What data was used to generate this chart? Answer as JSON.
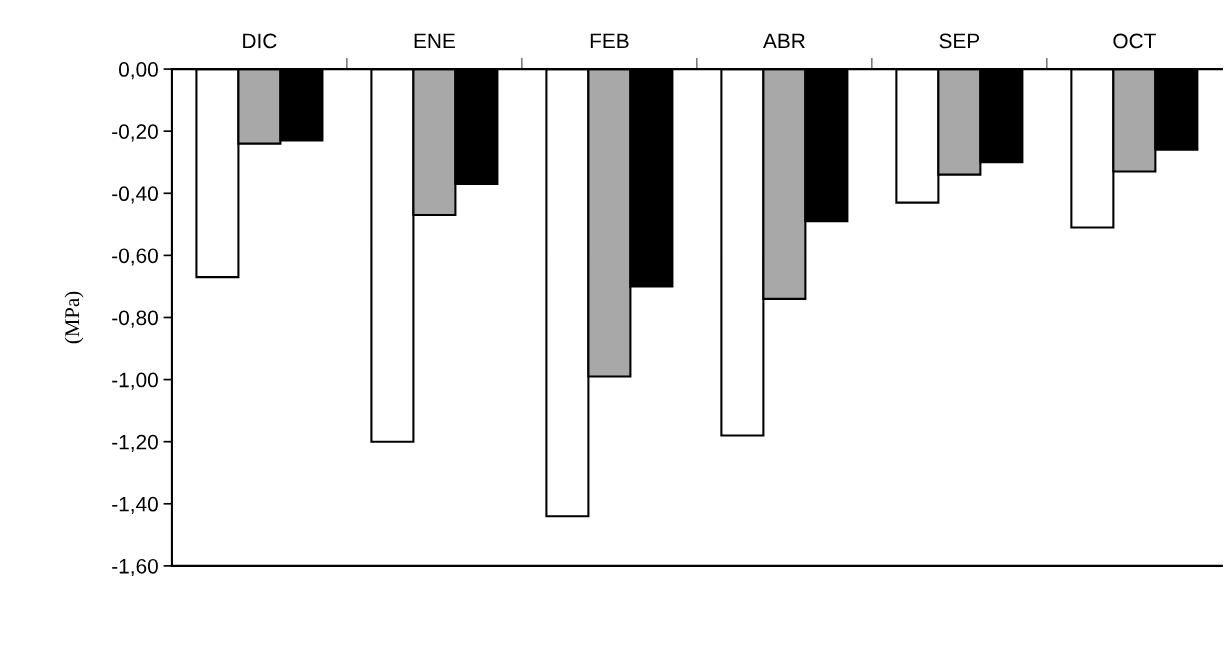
{
  "chart_data": {
    "type": "bar",
    "ylabel": "(MPa)",
    "categories": [
      "DIC",
      "ENE",
      "FEB",
      "ABR",
      "SEP",
      "OCT"
    ],
    "series": [
      {
        "color": "#ffffff",
        "values": [
          -0.67,
          -1.2,
          -1.44,
          -1.18,
          -0.43,
          -0.51
        ]
      },
      {
        "color": "#a8a8a8",
        "values": [
          -0.24,
          -0.47,
          -0.99,
          -0.74,
          -0.34,
          -0.33
        ]
      },
      {
        "color": "#000000",
        "values": [
          -0.23,
          -0.37,
          -0.7,
          -0.49,
          -0.3,
          -0.26
        ]
      }
    ],
    "ylim": [
      -1.6,
      0
    ],
    "yticks": [
      {
        "value": 0,
        "label": "0,00"
      },
      {
        "value": -0.2,
        "label": "-0,20"
      },
      {
        "value": -0.4,
        "label": "-0,40"
      },
      {
        "value": -0.6,
        "label": "-0,60"
      },
      {
        "value": -0.8,
        "label": "-0,80"
      },
      {
        "value": -1.0,
        "label": "-1,00"
      },
      {
        "value": -1.2,
        "label": "-1,20"
      },
      {
        "value": -1.4,
        "label": "-1,40"
      },
      {
        "value": -1.6,
        "label": "-1,60"
      }
    ],
    "grid": false,
    "legend": false
  }
}
